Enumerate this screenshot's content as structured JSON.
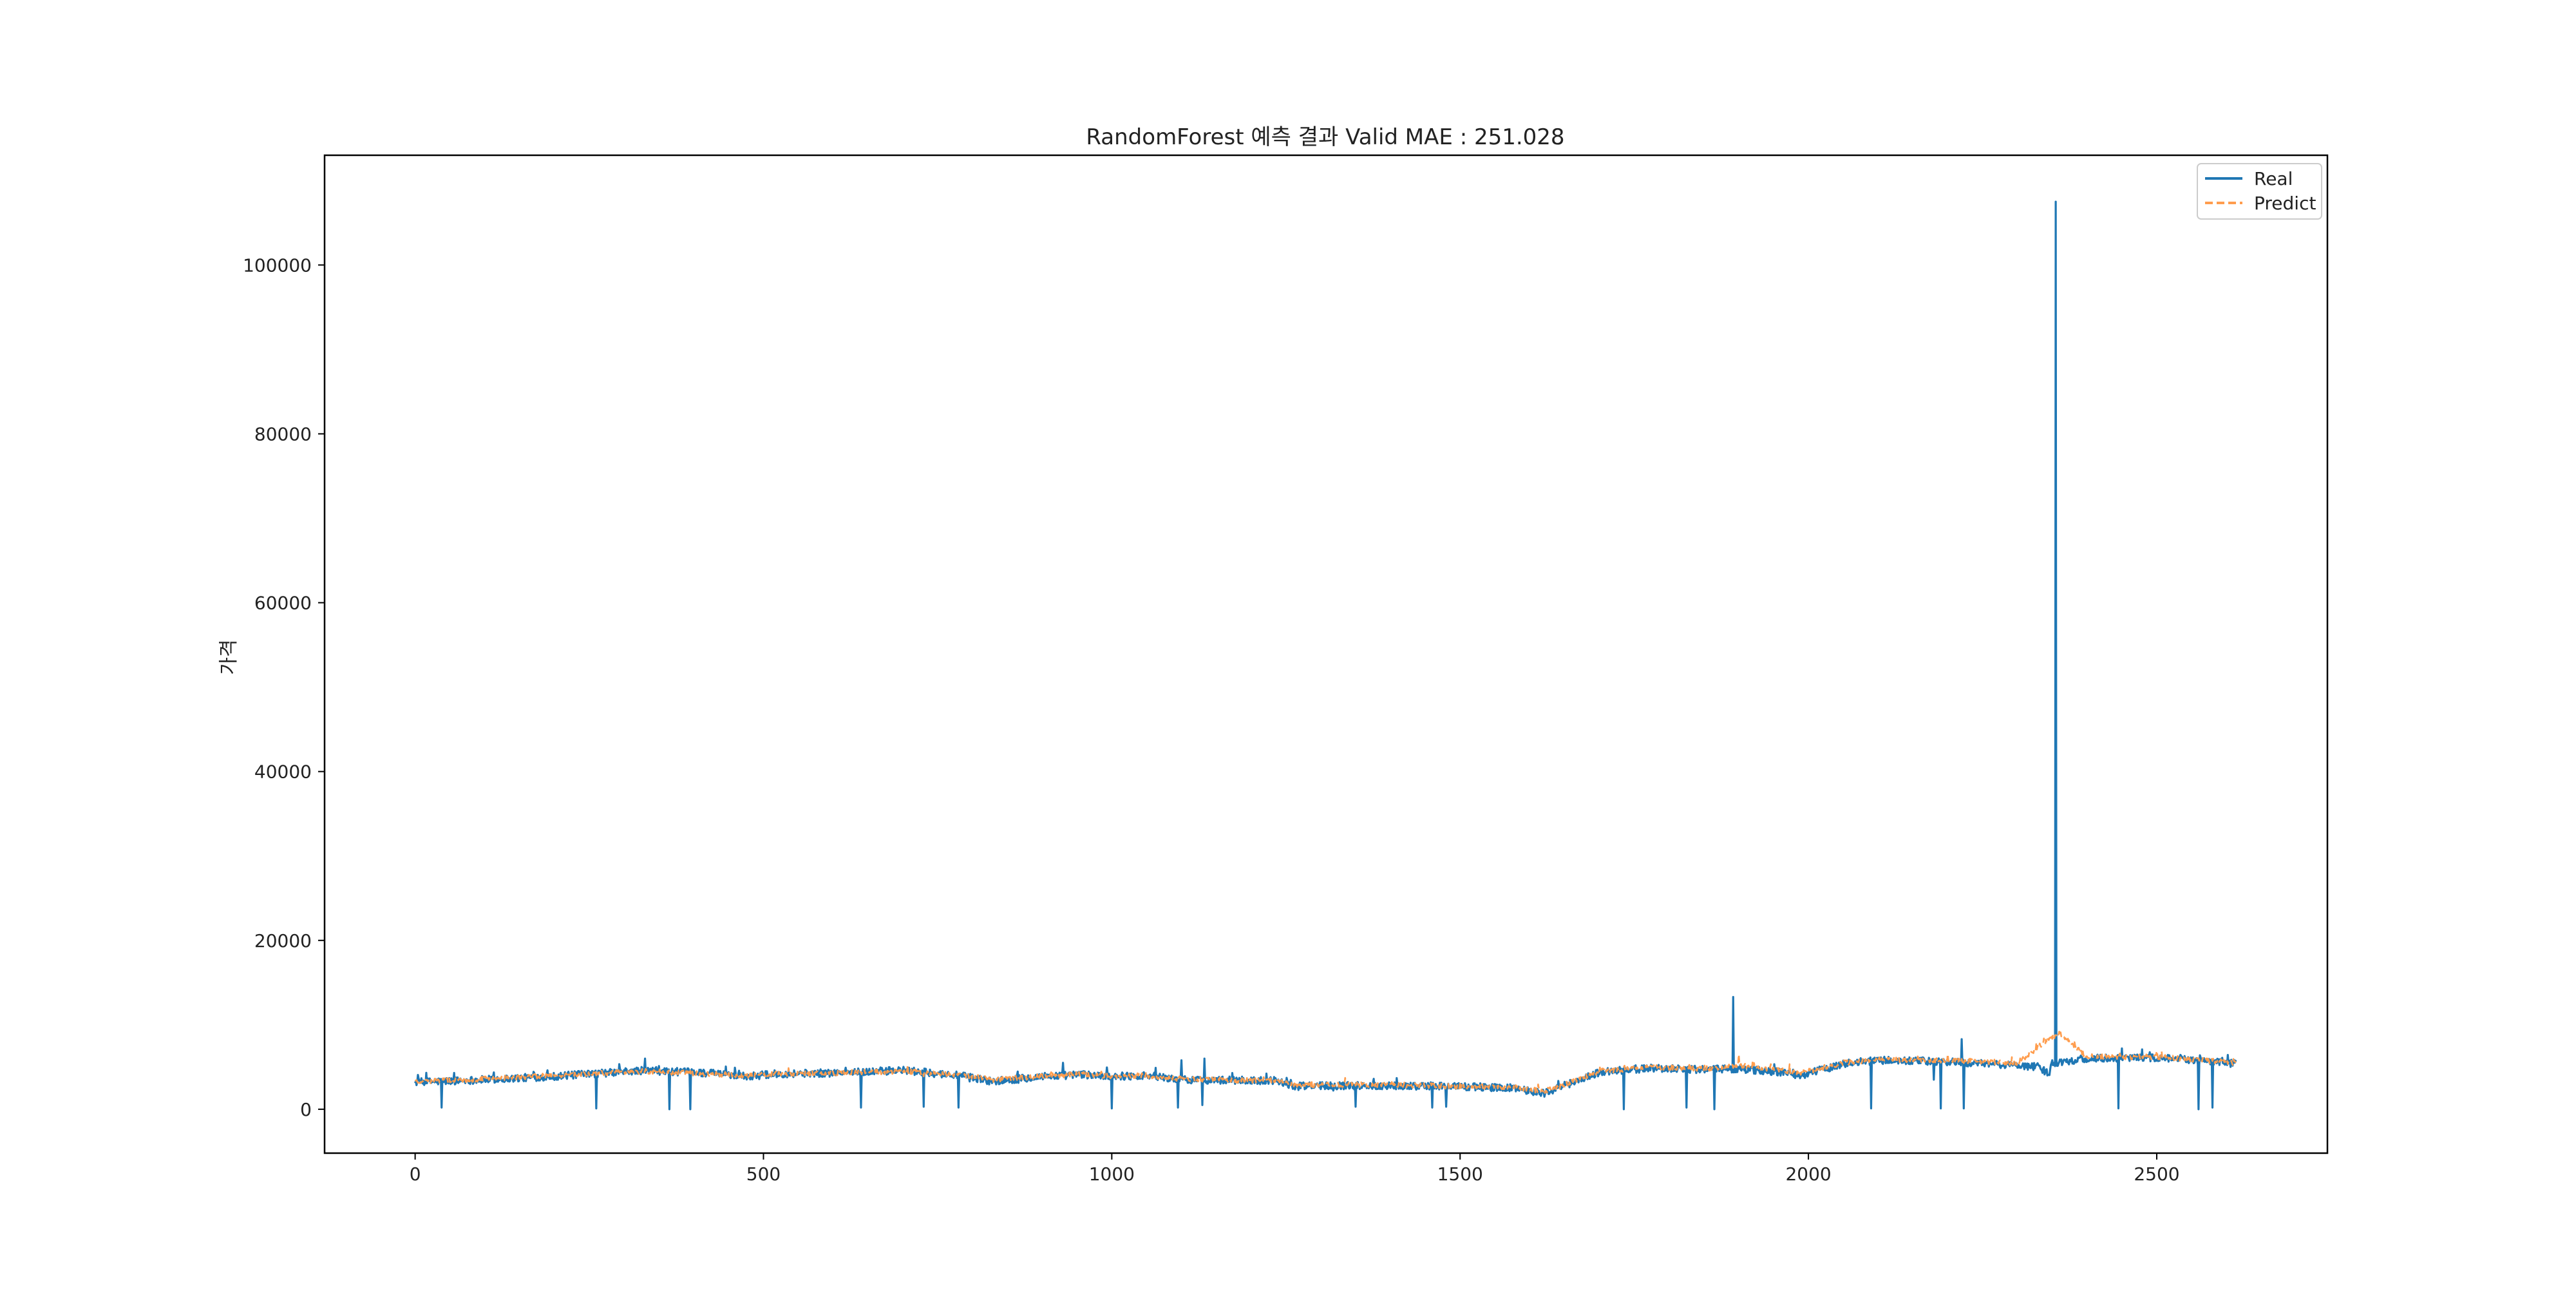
{
  "chart_data": {
    "type": "line",
    "title": "RandomForest 예측 결과 Valid MAE : 251.028",
    "xlabel": "",
    "ylabel": "가격",
    "xlim": [
      -130,
      2745
    ],
    "ylim": [
      -5200,
      113000
    ],
    "xticks": [
      0,
      500,
      1000,
      1500,
      2000,
      2500
    ],
    "yticks": [
      0,
      20000,
      40000,
      60000,
      80000,
      100000
    ],
    "xtick_labels": [
      "0",
      "500",
      "1000",
      "1500",
      "2000",
      "2500"
    ],
    "ytick_labels": [
      "0",
      "20000",
      "40000",
      "60000",
      "80000",
      "100000"
    ],
    "grid": false,
    "legend_position": "top-right",
    "n_points": 2615,
    "series": [
      {
        "name": "Real",
        "color": "#1f77b4",
        "style": "solid",
        "baseline": [
          [
            0,
            3200
          ],
          [
            100,
            3500
          ],
          [
            200,
            3900
          ],
          [
            330,
            4600
          ],
          [
            420,
            4300
          ],
          [
            480,
            3900
          ],
          [
            520,
            4200
          ],
          [
            600,
            4300
          ],
          [
            700,
            4600
          ],
          [
            780,
            4000
          ],
          [
            830,
            3300
          ],
          [
            900,
            3900
          ],
          [
            960,
            4100
          ],
          [
            1000,
            3900
          ],
          [
            1050,
            4000
          ],
          [
            1100,
            3500
          ],
          [
            1200,
            3400
          ],
          [
            1240,
            3400
          ],
          [
            1260,
            2700
          ],
          [
            1300,
            2800
          ],
          [
            1400,
            2800
          ],
          [
            1500,
            2700
          ],
          [
            1580,
            2500
          ],
          [
            1620,
            1900
          ],
          [
            1650,
            2800
          ],
          [
            1700,
            4400
          ],
          [
            1780,
            4900
          ],
          [
            1850,
            4700
          ],
          [
            1900,
            4800
          ],
          [
            1960,
            4400
          ],
          [
            1990,
            4000
          ],
          [
            2050,
            5400
          ],
          [
            2100,
            5800
          ],
          [
            2200,
            5600
          ],
          [
            2300,
            5200
          ],
          [
            2330,
            5000
          ],
          [
            2345,
            4200
          ],
          [
            2350,
            5500
          ],
          [
            2400,
            6000
          ],
          [
            2500,
            6100
          ],
          [
            2614,
            5400
          ]
        ],
        "spikes": [
          [
            38,
            200
          ],
          [
            260,
            100
          ],
          [
            330,
            6000
          ],
          [
            365,
            0
          ],
          [
            395,
            0
          ],
          [
            640,
            200
          ],
          [
            730,
            300
          ],
          [
            780,
            200
          ],
          [
            930,
            5500
          ],
          [
            1000,
            100
          ],
          [
            1095,
            200
          ],
          [
            1100,
            5800
          ],
          [
            1130,
            500
          ],
          [
            1133,
            6000
          ],
          [
            1350,
            300
          ],
          [
            1460,
            200
          ],
          [
            1480,
            300
          ],
          [
            1735,
            0
          ],
          [
            1825,
            200
          ],
          [
            1865,
            0
          ],
          [
            1892,
            13300
          ],
          [
            2090,
            100
          ],
          [
            2180,
            3500
          ],
          [
            2190,
            100
          ],
          [
            2220,
            8300
          ],
          [
            2223,
            100
          ],
          [
            2355,
            107500
          ],
          [
            2445,
            100
          ],
          [
            2450,
            7200
          ],
          [
            2560,
            0
          ],
          [
            2580,
            200
          ]
        ]
      },
      {
        "name": "Predict",
        "color": "#ff9d4e",
        "style": "dashed",
        "baseline": [
          [
            0,
            3300
          ],
          [
            100,
            3600
          ],
          [
            200,
            4000
          ],
          [
            330,
            4500
          ],
          [
            420,
            4200
          ],
          [
            480,
            4000
          ],
          [
            520,
            4200
          ],
          [
            600,
            4300
          ],
          [
            700,
            4500
          ],
          [
            780,
            4100
          ],
          [
            830,
            3500
          ],
          [
            900,
            3900
          ],
          [
            960,
            4200
          ],
          [
            1000,
            3900
          ],
          [
            1050,
            4000
          ],
          [
            1100,
            3600
          ],
          [
            1200,
            3400
          ],
          [
            1240,
            3400
          ],
          [
            1260,
            2800
          ],
          [
            1300,
            2900
          ],
          [
            1400,
            2900
          ],
          [
            1500,
            2700
          ],
          [
            1580,
            2600
          ],
          [
            1620,
            2100
          ],
          [
            1650,
            2900
          ],
          [
            1700,
            4500
          ],
          [
            1780,
            5000
          ],
          [
            1850,
            4800
          ],
          [
            1900,
            5200
          ],
          [
            1960,
            4600
          ],
          [
            1990,
            4300
          ],
          [
            2050,
            5500
          ],
          [
            2100,
            5900
          ],
          [
            2200,
            5800
          ],
          [
            2300,
            5500
          ],
          [
            2340,
            8000
          ],
          [
            2360,
            9000
          ],
          [
            2380,
            7500
          ],
          [
            2400,
            6200
          ],
          [
            2500,
            6200
          ],
          [
            2614,
            5500
          ]
        ],
        "spikes": [
          [
            1900,
            6500
          ],
          [
            2345,
            8200
          ],
          [
            2360,
            9200
          ],
          [
            2372,
            8600
          ]
        ]
      }
    ]
  }
}
